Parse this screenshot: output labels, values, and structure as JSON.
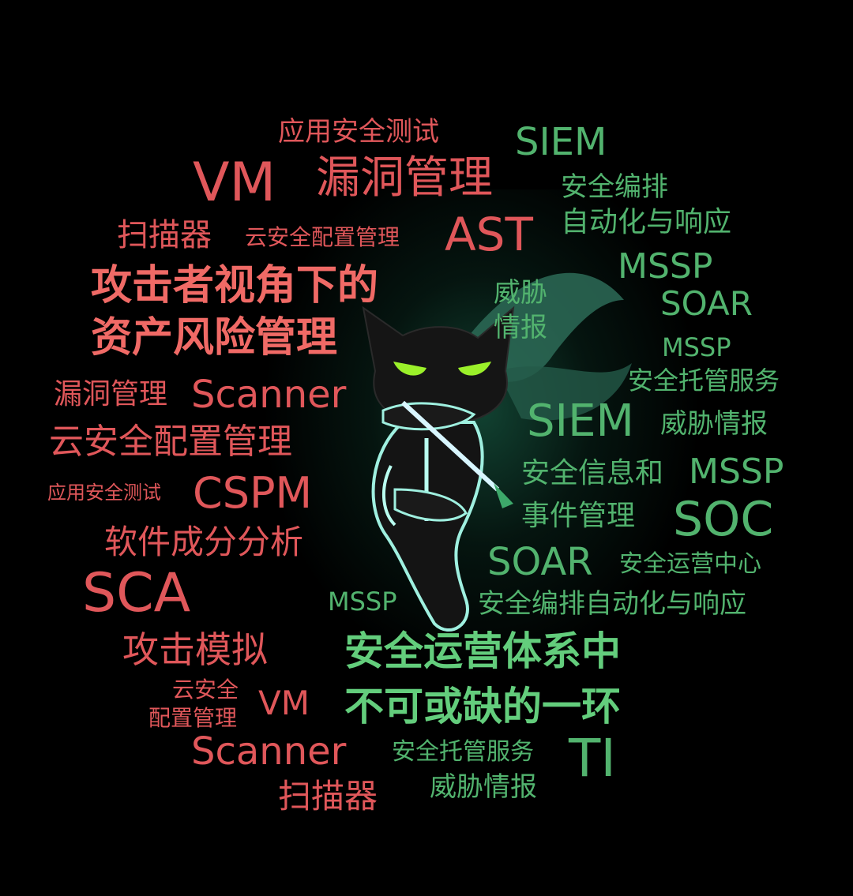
{
  "colors": {
    "background": "#000000",
    "red": "#e0575a",
    "green": "#52b36e",
    "glow": "#1f7a5a"
  },
  "illustration": {
    "icon": "ninja-cat-mascot-icon"
  },
  "red_words": [
    "应用安全测试",
    "VM",
    "漏洞管理",
    "扫描器",
    "云安全配置管理",
    "AST",
    "漏洞管理",
    "Scanner",
    "云安全配置管理",
    "应用安全测试",
    "CSPM",
    "软件成分分析",
    "SCA",
    "攻击模拟",
    "云安全",
    "配置管理",
    "VM",
    "Scanner",
    "扫描器"
  ],
  "red_headline": [
    "攻击者视角下的",
    "资产风险管理"
  ],
  "green_words": [
    "SIEM",
    "安全编排",
    "自动化与响应",
    "MSSP",
    "威胁",
    "情报",
    "SOAR",
    "MSSP",
    "安全托管服务",
    "SIEM",
    "威胁情报",
    "安全信息和",
    "MSSP",
    "事件管理",
    "SOC",
    "SOAR",
    "安全运营中心",
    "MSSP",
    "安全编排自动化与响应",
    "安全托管服务",
    "TI",
    "威胁情报"
  ],
  "green_headline": [
    "安全运营体系中",
    "不可或缺的一环"
  ]
}
